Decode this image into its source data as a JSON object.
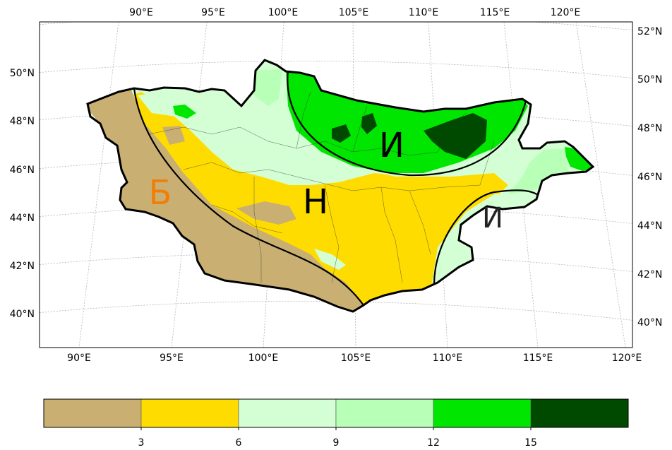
{
  "map": {
    "top_lon_labels": [
      "90°E",
      "95°E",
      "100°E",
      "105°E",
      "110°E",
      "115°E",
      "120°E"
    ],
    "bottom_lon_labels": [
      "90°E",
      "95°E",
      "100°E",
      "105°E",
      "110°E",
      "115°E",
      "120°E"
    ],
    "left_lat_labels": [
      "50°N",
      "48°N",
      "46°N",
      "44°N",
      "42°N",
      "40°N"
    ],
    "right_lat_labels": [
      "52°N",
      "50°N",
      "48°N",
      "46°N",
      "44°N",
      "42°N",
      "40°N"
    ],
    "zone_labels": {
      "b": {
        "text": "Б",
        "color": "#f07f0a"
      },
      "n": {
        "text": "Н",
        "color": "#000000"
      },
      "i_north": {
        "text": "И",
        "color": "#000000"
      },
      "i_east": {
        "text": "И",
        "color": "#222222"
      }
    }
  },
  "colorbar": {
    "ticks": [
      "3",
      "6",
      "9",
      "12",
      "15"
    ],
    "colors": [
      "#c9b072",
      "#ffdc00",
      "#d4ffd4",
      "#b8ffb8",
      "#00e600",
      "#004a00"
    ]
  }
}
